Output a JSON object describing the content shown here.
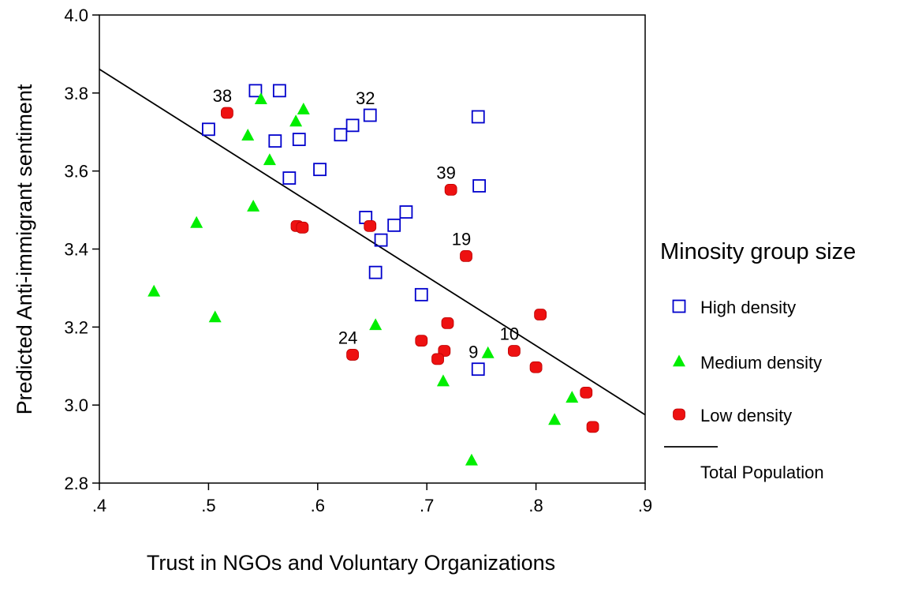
{
  "chart_data": {
    "type": "scatter",
    "xlabel": "Trust in NGOs and Voluntary Organizations",
    "ylabel": "Predicted Anti-immigrant sentiment",
    "xlim": [
      0.4,
      0.9
    ],
    "ylim": [
      2.8,
      4.0
    ],
    "xticks": [
      0.4,
      0.5,
      0.6,
      0.7,
      0.8,
      0.9
    ],
    "xtick_labels": [
      ".4",
      ".5",
      ".6",
      ".7",
      ".8",
      ".9"
    ],
    "yticks": [
      2.8,
      3.0,
      3.2,
      3.4,
      3.6,
      3.8,
      4.0
    ],
    "ytick_labels": [
      "2.8",
      "3.0",
      "3.2",
      "3.4",
      "3.6",
      "3.8",
      "4.0"
    ],
    "grid": false,
    "legend_position": "right",
    "legend_title": "Minosity group size",
    "series": [
      {
        "name": "High density",
        "marker": "square",
        "color": "#0000cc",
        "points": [
          {
            "x": 0.5,
            "y": 3.707
          },
          {
            "x": 0.543,
            "y": 3.806
          },
          {
            "x": 0.565,
            "y": 3.806
          },
          {
            "x": 0.561,
            "y": 3.677
          },
          {
            "x": 0.583,
            "y": 3.681
          },
          {
            "x": 0.574,
            "y": 3.582
          },
          {
            "x": 0.602,
            "y": 3.604
          },
          {
            "x": 0.621,
            "y": 3.693
          },
          {
            "x": 0.632,
            "y": 3.717
          },
          {
            "x": 0.648,
            "y": 3.743
          },
          {
            "x": 0.747,
            "y": 3.739
          },
          {
            "x": 0.748,
            "y": 3.562
          },
          {
            "x": 0.644,
            "y": 3.481
          },
          {
            "x": 0.681,
            "y": 3.495
          },
          {
            "x": 0.67,
            "y": 3.461
          },
          {
            "x": 0.658,
            "y": 3.423
          },
          {
            "x": 0.653,
            "y": 3.34
          },
          {
            "x": 0.695,
            "y": 3.283
          },
          {
            "x": 0.747,
            "y": 3.092
          }
        ]
      },
      {
        "name": "Medium density",
        "marker": "triangle",
        "color": "#00ee00",
        "points": [
          {
            "x": 0.548,
            "y": 3.784
          },
          {
            "x": 0.587,
            "y": 3.758
          },
          {
            "x": 0.58,
            "y": 3.727
          },
          {
            "x": 0.536,
            "y": 3.691
          },
          {
            "x": 0.556,
            "y": 3.628
          },
          {
            "x": 0.541,
            "y": 3.509
          },
          {
            "x": 0.489,
            "y": 3.467
          },
          {
            "x": 0.45,
            "y": 3.291
          },
          {
            "x": 0.506,
            "y": 3.225
          },
          {
            "x": 0.653,
            "y": 3.205
          },
          {
            "x": 0.756,
            "y": 3.133
          },
          {
            "x": 0.715,
            "y": 3.061
          },
          {
            "x": 0.833,
            "y": 3.019
          },
          {
            "x": 0.817,
            "y": 2.962
          },
          {
            "x": 0.741,
            "y": 2.858
          }
        ]
      },
      {
        "name": "Low density",
        "marker": "circle",
        "color": "#ee1111",
        "points": [
          {
            "x": 0.517,
            "y": 3.749
          },
          {
            "x": 0.722,
            "y": 3.552
          },
          {
            "x": 0.581,
            "y": 3.459
          },
          {
            "x": 0.586,
            "y": 3.455
          },
          {
            "x": 0.648,
            "y": 3.459
          },
          {
            "x": 0.736,
            "y": 3.382
          },
          {
            "x": 0.804,
            "y": 3.232
          },
          {
            "x": 0.719,
            "y": 3.21
          },
          {
            "x": 0.695,
            "y": 3.165
          },
          {
            "x": 0.716,
            "y": 3.139
          },
          {
            "x": 0.71,
            "y": 3.118
          },
          {
            "x": 0.632,
            "y": 3.129
          },
          {
            "x": 0.78,
            "y": 3.139
          },
          {
            "x": 0.8,
            "y": 3.097
          },
          {
            "x": 0.846,
            "y": 3.032
          },
          {
            "x": 0.852,
            "y": 2.944
          }
        ]
      }
    ],
    "fit_line": {
      "name": "Total Population",
      "color": "#000000",
      "points": [
        {
          "x": 0.4,
          "y": 3.861
        },
        {
          "x": 0.9,
          "y": 2.975
        }
      ]
    },
    "annotations": [
      {
        "text": "38",
        "x": 0.517,
        "y": 3.749
      },
      {
        "text": "32",
        "x": 0.648,
        "y": 3.743
      },
      {
        "text": "39",
        "x": 0.722,
        "y": 3.552
      },
      {
        "text": "19",
        "x": 0.736,
        "y": 3.382
      },
      {
        "text": "24",
        "x": 0.632,
        "y": 3.129
      },
      {
        "text": "9",
        "x": 0.747,
        "y": 3.092
      },
      {
        "text": "10",
        "x": 0.78,
        "y": 3.139
      }
    ]
  }
}
